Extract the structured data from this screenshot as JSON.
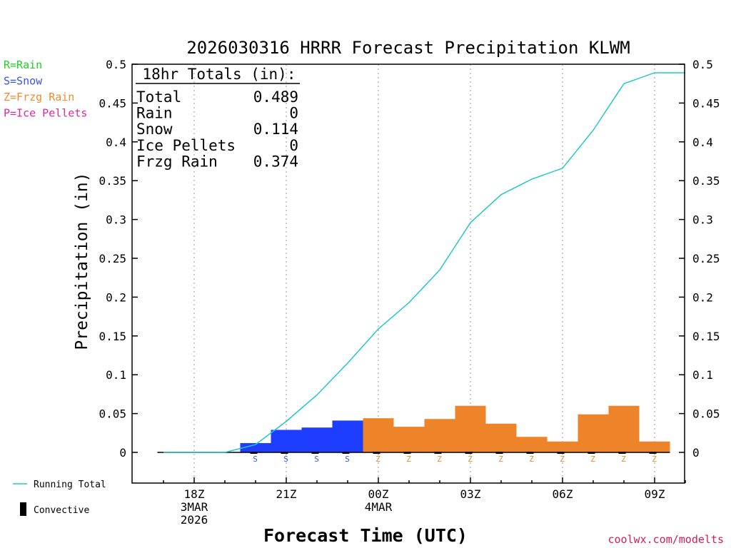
{
  "colors": {
    "rain": "#22d022",
    "snow": "#3355ee",
    "frzg": "#ee8a30",
    "ice": "#e0289a",
    "snow_bar": "#1f3dff",
    "frzg_bar": "#ee842a",
    "running": "#22c8c8",
    "credit": "#d81a5a"
  },
  "legend_left": [
    {
      "label": "R=Rain",
      "color": "#22d022"
    },
    {
      "label": "S=Snow",
      "color": "#3355ee"
    },
    {
      "label": "Z=Frzg Rain",
      "color": "#ee8a30"
    },
    {
      "label": "P=Ice Pellets",
      "color": "#e0289a"
    }
  ],
  "bottom_legend": {
    "running_total": "Running Total",
    "convective": "Convective"
  },
  "totals_box": {
    "header": "18hr Totals (in):",
    "rows": [
      {
        "label": "Total",
        "value": "0.489"
      },
      {
        "label": "Rain",
        "value": "0"
      },
      {
        "label": "Snow",
        "value": "0.114"
      },
      {
        "label": "Ice Pellets",
        "value": "0"
      },
      {
        "label": "Frzg Rain",
        "value": "0.374"
      }
    ]
  },
  "credit": "coolwx.com/modelts",
  "chart_data": {
    "type": "bar",
    "title": "2026030316 HRRR Forecast Precipitation KLWM",
    "xlabel": "Forecast Time (UTC)",
    "ylabel": "Precipitation (in)",
    "ylim": [
      -0.04,
      0.5
    ],
    "yticks": [
      0,
      0.05,
      0.1,
      0.15,
      0.2,
      0.25,
      0.3,
      0.35,
      0.4,
      0.45,
      0.5
    ],
    "ytick_labels": [
      "0",
      "0.05",
      "0.1",
      "0.15",
      "0.2",
      "0.25",
      "0.3",
      "0.35",
      "0.4",
      "0.45",
      "0.5"
    ],
    "xlim_hours": [
      16.3,
      34.3
    ],
    "x_ticks": [
      {
        "hour": 18,
        "lines": [
          "18Z",
          "3MAR",
          "2026"
        ]
      },
      {
        "hour": 21,
        "lines": [
          "21Z"
        ]
      },
      {
        "hour": 24,
        "lines": [
          "00Z",
          "4MAR"
        ]
      },
      {
        "hour": 27,
        "lines": [
          "03Z"
        ]
      },
      {
        "hour": 30,
        "lines": [
          "06Z"
        ]
      },
      {
        "hour": 33,
        "lines": [
          "09Z"
        ]
      }
    ],
    "bars": [
      {
        "hour": 20,
        "value": 0.012,
        "type": "S"
      },
      {
        "hour": 21,
        "value": 0.029,
        "type": "S"
      },
      {
        "hour": 22,
        "value": 0.032,
        "type": "S"
      },
      {
        "hour": 23,
        "value": 0.041,
        "type": "S"
      },
      {
        "hour": 24,
        "value": 0.044,
        "type": "Z"
      },
      {
        "hour": 25,
        "value": 0.033,
        "type": "Z"
      },
      {
        "hour": 26,
        "value": 0.043,
        "type": "Z"
      },
      {
        "hour": 27,
        "value": 0.06,
        "type": "Z"
      },
      {
        "hour": 28,
        "value": 0.037,
        "type": "Z"
      },
      {
        "hour": 29,
        "value": 0.02,
        "type": "Z"
      },
      {
        "hour": 30,
        "value": 0.014,
        "type": "Z"
      },
      {
        "hour": 31,
        "value": 0.049,
        "type": "Z"
      },
      {
        "hour": 32,
        "value": 0.06,
        "type": "Z"
      },
      {
        "hour": 33,
        "value": 0.014,
        "type": "Z"
      }
    ],
    "running_total": {
      "name": "Running Total",
      "x": [
        17,
        18,
        19,
        20,
        21,
        22,
        23,
        24,
        25,
        26,
        27,
        28,
        29,
        30,
        31,
        32,
        33,
        34
      ],
      "values": [
        0,
        0,
        0,
        0.01,
        0.04,
        0.074,
        0.115,
        0.159,
        0.193,
        0.235,
        0.296,
        0.332,
        0.352,
        0.366,
        0.415,
        0.475,
        0.489,
        0.489
      ]
    }
  }
}
